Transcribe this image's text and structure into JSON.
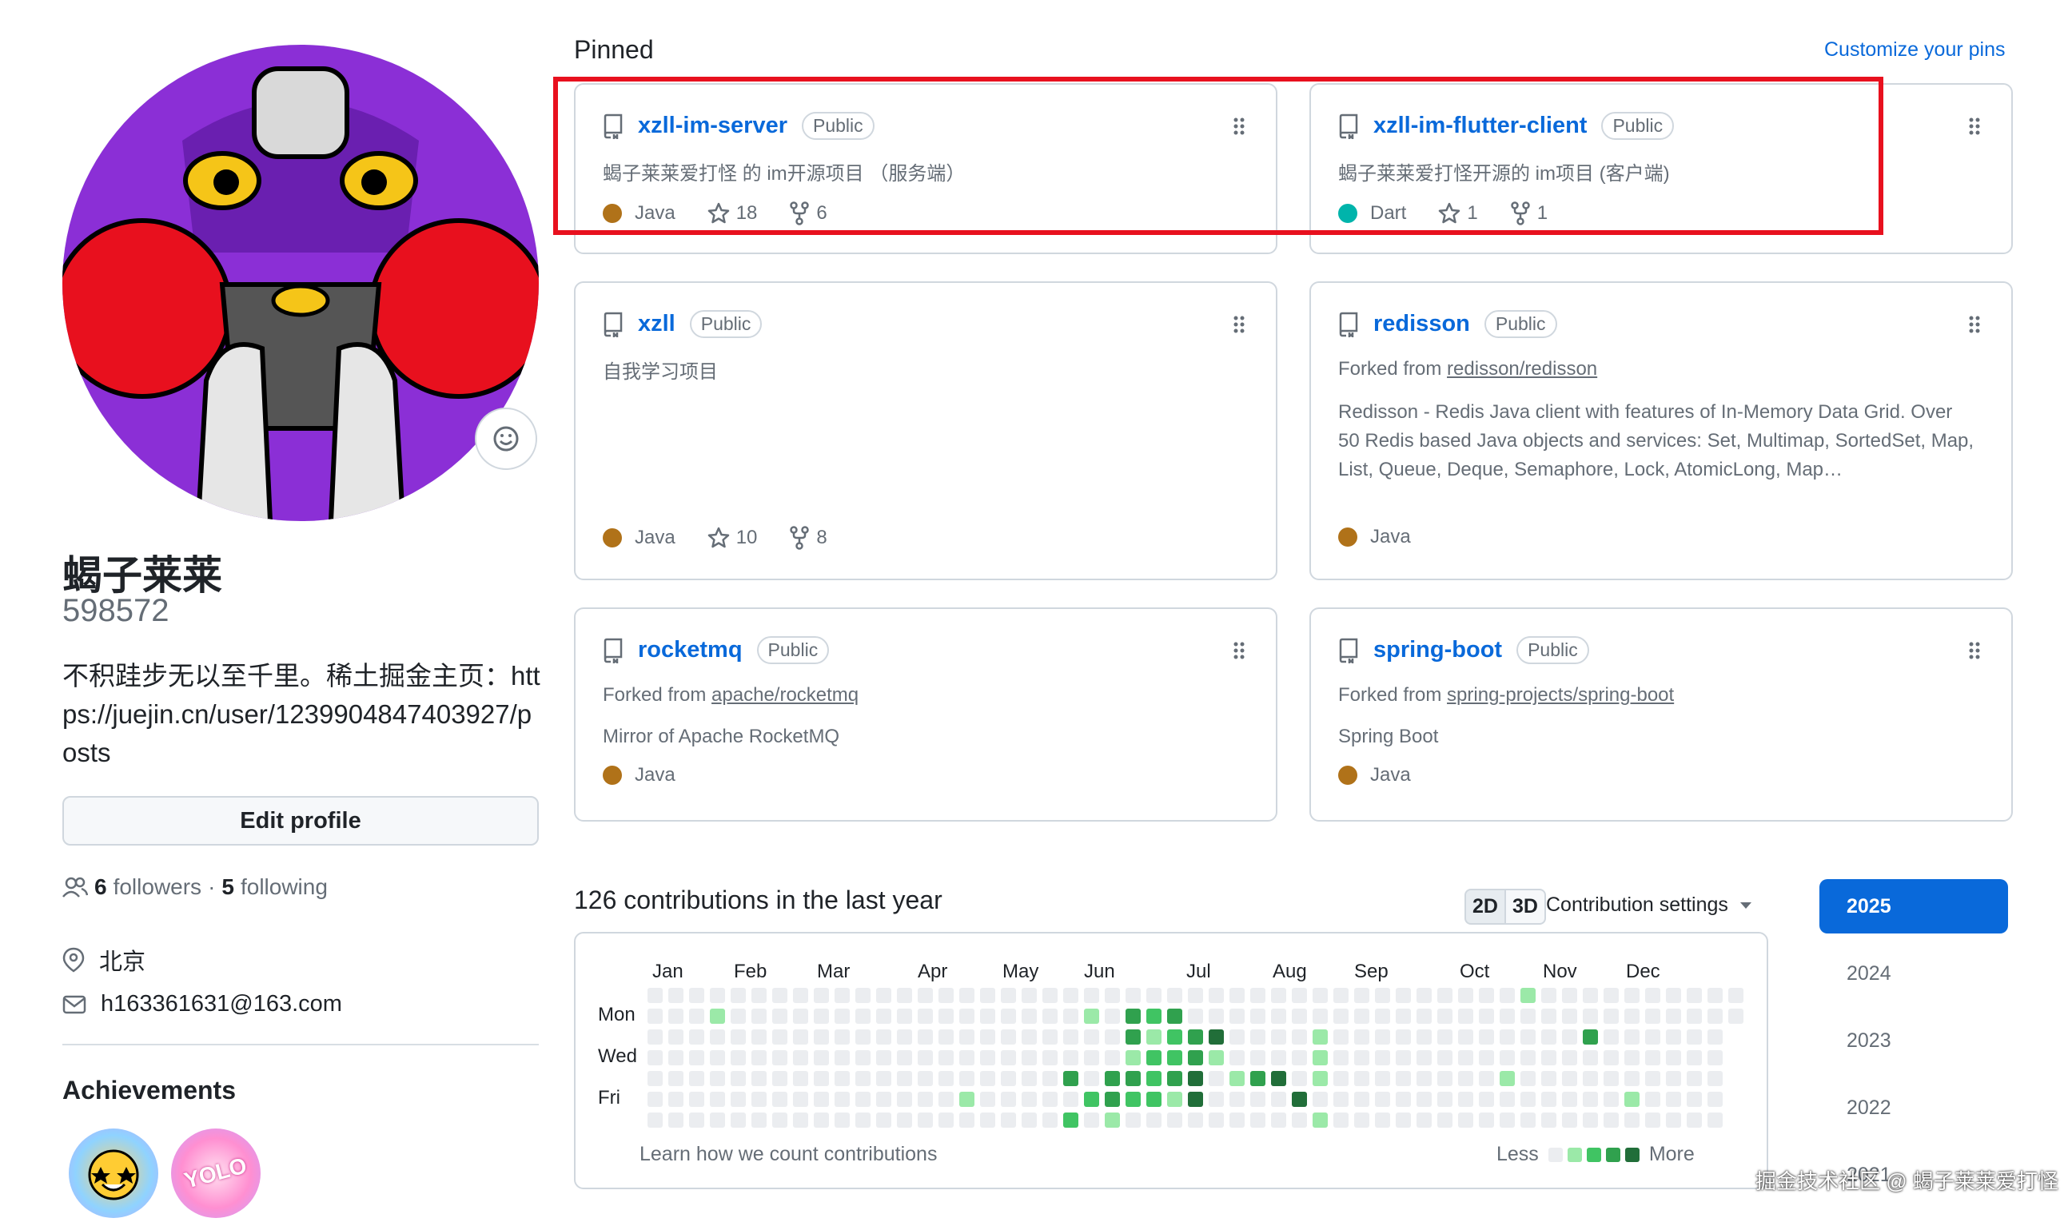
{
  "profile": {
    "name": "蝎子莱莱",
    "login": "598572",
    "bio": "不积跬步无以至千里。稀土掘金主页：https://juejin.cn/user/1239904847403927/posts",
    "edit_label": "Edit profile",
    "followers_count": "6",
    "followers_label": "followers",
    "following_count": "5",
    "following_label": "following",
    "dot": "·",
    "location": "北京",
    "email": "h163361631@163.com"
  },
  "achievements": {
    "title": "Achievements",
    "badge_text": "YOLO"
  },
  "pinned": {
    "title": "Pinned",
    "customize_label": "Customize your pins",
    "public_label": "Public",
    "cards": [
      {
        "name": "xzll-im-server",
        "desc": "蝎子莱莱爱打怪 的 im开源项目 （服务端）",
        "lang": "Java",
        "lang_color": "#b07219",
        "stars": "18",
        "forks": "6"
      },
      {
        "name": "xzll-im-flutter-client",
        "desc": "蝎子莱莱爱打怪开源的 im项目 (客户端)",
        "lang": "Dart",
        "lang_color": "#00B4AB",
        "stars": "1",
        "forks": "1"
      },
      {
        "name": "xzll",
        "desc": "自我学习项目",
        "lang": "Java",
        "lang_color": "#b07219",
        "stars": "10",
        "forks": "8"
      },
      {
        "name": "redisson",
        "forked_prefix": "Forked from",
        "forked_from": "redisson/redisson",
        "desc": "Redisson - Redis Java client with features of In-Memory Data Grid. Over 50 Redis based Java objects and services: Set, Multimap, SortedSet, Map, List, Queue, Deque, Semaphore, Lock, AtomicLong, Map…",
        "lang": "Java",
        "lang_color": "#b07219"
      },
      {
        "name": "rocketmq",
        "forked_prefix": "Forked from",
        "forked_from": "apache/rocketmq",
        "desc": "Mirror of Apache RocketMQ",
        "lang": "Java",
        "lang_color": "#b07219"
      },
      {
        "name": "spring-boot",
        "forked_prefix": "Forked from",
        "forked_from": "spring-projects/spring-boot",
        "desc": "Spring Boot",
        "lang": "Java",
        "lang_color": "#b07219"
      }
    ]
  },
  "contributions": {
    "title": "126 contributions in the last year",
    "btn_2d": "2D",
    "btn_3d": "3D",
    "settings_label": "Contribution settings",
    "months": [
      "Jan",
      "Feb",
      "Mar",
      "Apr",
      "May",
      "Jun",
      "Jul",
      "Aug",
      "Sep",
      "Oct",
      "Nov",
      "Dec"
    ],
    "days": [
      "Mon",
      "Wed",
      "Fri"
    ],
    "learn_label": "Learn how we count contributions",
    "less_label": "Less",
    "more_label": "More",
    "colors": [
      "#ebedf0",
      "#9be9a8",
      "#40c463",
      "#30a14e",
      "#216e39"
    ]
  },
  "years": [
    "2025",
    "2024",
    "2023",
    "2022",
    "2021"
  ],
  "watermark": "掘金技术社区 @ 蝎子莱莱爱打怪"
}
